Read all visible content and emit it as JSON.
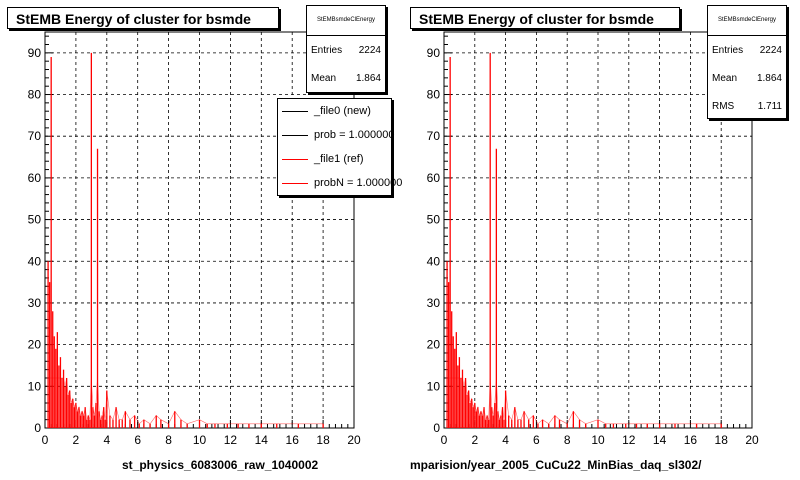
{
  "chart_data": [
    {
      "type": "histogram",
      "title": "StEMB Energy of cluster for bsmde",
      "xlabel": "st_physics_6083006_raw_1040002",
      "xlim": [
        0,
        20
      ],
      "ylim": [
        0,
        95
      ],
      "x_ticks": [
        0,
        2,
        4,
        6,
        8,
        10,
        12,
        14,
        16,
        18,
        20
      ],
      "y_ticks": [
        0,
        10,
        20,
        30,
        40,
        50,
        60,
        70,
        80,
        90
      ],
      "grid": true,
      "stats": {
        "title": "StEMBsmdeClEnergy",
        "rows": [
          {
            "label": "Entries",
            "value": "2224"
          },
          {
            "label": "Mean",
            "value": "1.864"
          }
        ]
      },
      "legend": {
        "placement": "top-right",
        "entries": [
          {
            "label": "_file0 (new)",
            "color": "#000000"
          },
          {
            "label": "prob = 1.000000",
            "color": "#000000"
          },
          {
            "label": "_file1 (ref)",
            "color": "#ff0000"
          },
          {
            "label": "probN = 1.000000",
            "color": "#ff0000"
          }
        ]
      },
      "series": [
        {
          "color": "#ff0000",
          "spikes": [
            [
              0.2,
              40
            ],
            [
              0.3,
              35
            ],
            [
              0.4,
              89
            ],
            [
              0.5,
              28
            ],
            [
              0.6,
              22
            ],
            [
              0.7,
              19
            ],
            [
              0.8,
              23
            ],
            [
              0.9,
              15
            ],
            [
              1.0,
              17
            ],
            [
              1.1,
              12
            ],
            [
              1.2,
              14
            ],
            [
              1.3,
              10
            ],
            [
              1.4,
              12
            ],
            [
              1.5,
              8
            ],
            [
              1.6,
              9
            ],
            [
              1.7,
              6
            ],
            [
              1.8,
              7
            ],
            [
              1.9,
              5
            ],
            [
              2.0,
              6
            ],
            [
              2.1,
              4
            ],
            [
              2.2,
              5
            ],
            [
              2.3,
              3
            ],
            [
              2.4,
              4
            ],
            [
              2.5,
              3
            ],
            [
              2.6,
              5
            ],
            [
              2.7,
              2
            ],
            [
              2.8,
              3
            ],
            [
              2.9,
              2
            ],
            [
              3.0,
              90
            ],
            [
              3.1,
              5
            ],
            [
              3.2,
              3
            ],
            [
              3.3,
              6
            ],
            [
              3.4,
              67
            ],
            [
              3.5,
              4
            ],
            [
              3.6,
              2
            ],
            [
              3.7,
              3
            ],
            [
              3.8,
              5
            ],
            [
              3.9,
              2
            ],
            [
              4.0,
              9
            ],
            [
              4.2,
              3
            ],
            [
              4.4,
              2
            ],
            [
              4.6,
              5
            ],
            [
              4.8,
              2
            ],
            [
              5.0,
              2
            ],
            [
              5.2,
              4
            ],
            [
              5.5,
              2
            ],
            [
              5.8,
              3
            ],
            [
              6.1,
              1
            ],
            [
              6.4,
              2
            ],
            [
              6.8,
              1
            ],
            [
              7.2,
              3
            ],
            [
              7.5,
              2
            ],
            [
              8.0,
              1
            ],
            [
              8.4,
              4
            ],
            [
              8.8,
              2
            ],
            [
              9.2,
              1
            ],
            [
              10.0,
              2
            ],
            [
              10.5,
              1
            ],
            [
              11.0,
              1
            ],
            [
              11.8,
              1
            ],
            [
              12.5,
              1
            ],
            [
              13.2,
              1
            ],
            [
              14.0,
              1
            ],
            [
              15.0,
              1
            ],
            [
              16.4,
              1
            ],
            [
              18.0,
              1
            ]
          ]
        }
      ]
    },
    {
      "type": "histogram",
      "title": "StEMB Energy of cluster for bsmde",
      "xlabel": "mparision/year_2005_CuCu22_MinBias_daq_sl302/",
      "xlim": [
        0,
        20
      ],
      "ylim": [
        0,
        95
      ],
      "x_ticks": [
        0,
        2,
        4,
        6,
        8,
        10,
        12,
        14,
        16,
        18,
        20
      ],
      "y_ticks": [
        0,
        10,
        20,
        30,
        40,
        50,
        60,
        70,
        80,
        90
      ],
      "grid": true,
      "stats": {
        "title": "StEMBsmdeClEnergy",
        "rows": [
          {
            "label": "Entries",
            "value": "2224"
          },
          {
            "label": "Mean",
            "value": "1.864"
          },
          {
            "label": "RMS",
            "value": "1.711"
          }
        ]
      },
      "series": [
        {
          "color": "#ff0000",
          "spikes": [
            [
              0.2,
              40
            ],
            [
              0.3,
              35
            ],
            [
              0.4,
              89
            ],
            [
              0.5,
              28
            ],
            [
              0.6,
              22
            ],
            [
              0.7,
              19
            ],
            [
              0.8,
              23
            ],
            [
              0.9,
              15
            ],
            [
              1.0,
              17
            ],
            [
              1.1,
              12
            ],
            [
              1.2,
              14
            ],
            [
              1.3,
              10
            ],
            [
              1.4,
              12
            ],
            [
              1.5,
              8
            ],
            [
              1.6,
              9
            ],
            [
              1.7,
              6
            ],
            [
              1.8,
              7
            ],
            [
              1.9,
              5
            ],
            [
              2.0,
              6
            ],
            [
              2.1,
              4
            ],
            [
              2.2,
              5
            ],
            [
              2.3,
              3
            ],
            [
              2.4,
              4
            ],
            [
              2.5,
              3
            ],
            [
              2.6,
              5
            ],
            [
              2.7,
              2
            ],
            [
              2.8,
              3
            ],
            [
              2.9,
              2
            ],
            [
              3.0,
              90
            ],
            [
              3.1,
              5
            ],
            [
              3.2,
              3
            ],
            [
              3.3,
              6
            ],
            [
              3.4,
              67
            ],
            [
              3.5,
              4
            ],
            [
              3.6,
              2
            ],
            [
              3.7,
              3
            ],
            [
              3.8,
              5
            ],
            [
              3.9,
              2
            ],
            [
              4.0,
              9
            ],
            [
              4.2,
              3
            ],
            [
              4.4,
              2
            ],
            [
              4.6,
              5
            ],
            [
              4.8,
              2
            ],
            [
              5.0,
              2
            ],
            [
              5.2,
              4
            ],
            [
              5.5,
              2
            ],
            [
              5.8,
              3
            ],
            [
              6.1,
              1
            ],
            [
              6.4,
              2
            ],
            [
              6.8,
              1
            ],
            [
              7.2,
              3
            ],
            [
              7.5,
              2
            ],
            [
              8.0,
              1
            ],
            [
              8.4,
              4
            ],
            [
              8.8,
              2
            ],
            [
              9.2,
              1
            ],
            [
              10.0,
              2
            ],
            [
              10.5,
              1
            ],
            [
              11.0,
              1
            ],
            [
              11.8,
              1
            ],
            [
              12.5,
              1
            ],
            [
              13.2,
              1
            ],
            [
              14.0,
              1
            ],
            [
              15.0,
              1
            ],
            [
              16.4,
              1
            ],
            [
              18.0,
              1
            ]
          ]
        }
      ]
    }
  ]
}
